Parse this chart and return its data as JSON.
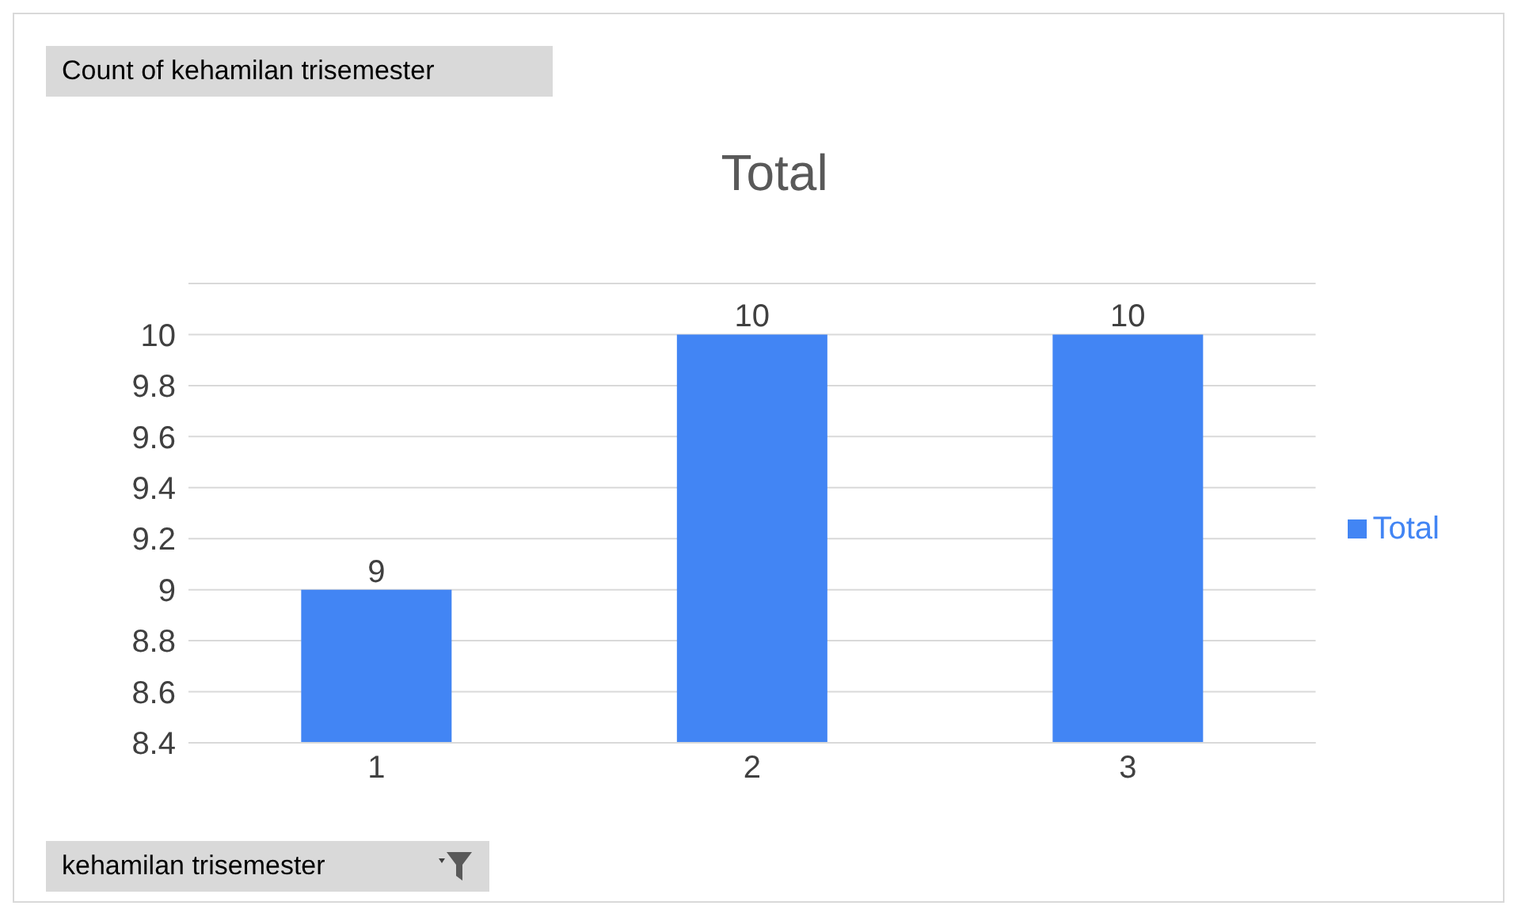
{
  "chart_data": {
    "type": "bar",
    "title": "Total",
    "categories": [
      "1",
      "2",
      "3"
    ],
    "series": [
      {
        "name": "Total",
        "color": "#4285f4",
        "values": [
          9,
          10,
          10
        ]
      }
    ],
    "ylim": [
      8.4,
      10.2
    ],
    "yticks": [
      8.4,
      8.6,
      8.8,
      9,
      9.2,
      9.4,
      9.6,
      9.8,
      10,
      {
        "value": 10.2,
        "label": null
      }
    ],
    "grid": "y",
    "legend": "right",
    "data_labels": true,
    "annotations": [
      "Count of kehamilan trisemester",
      "kehamilan trisemester"
    ]
  }
}
